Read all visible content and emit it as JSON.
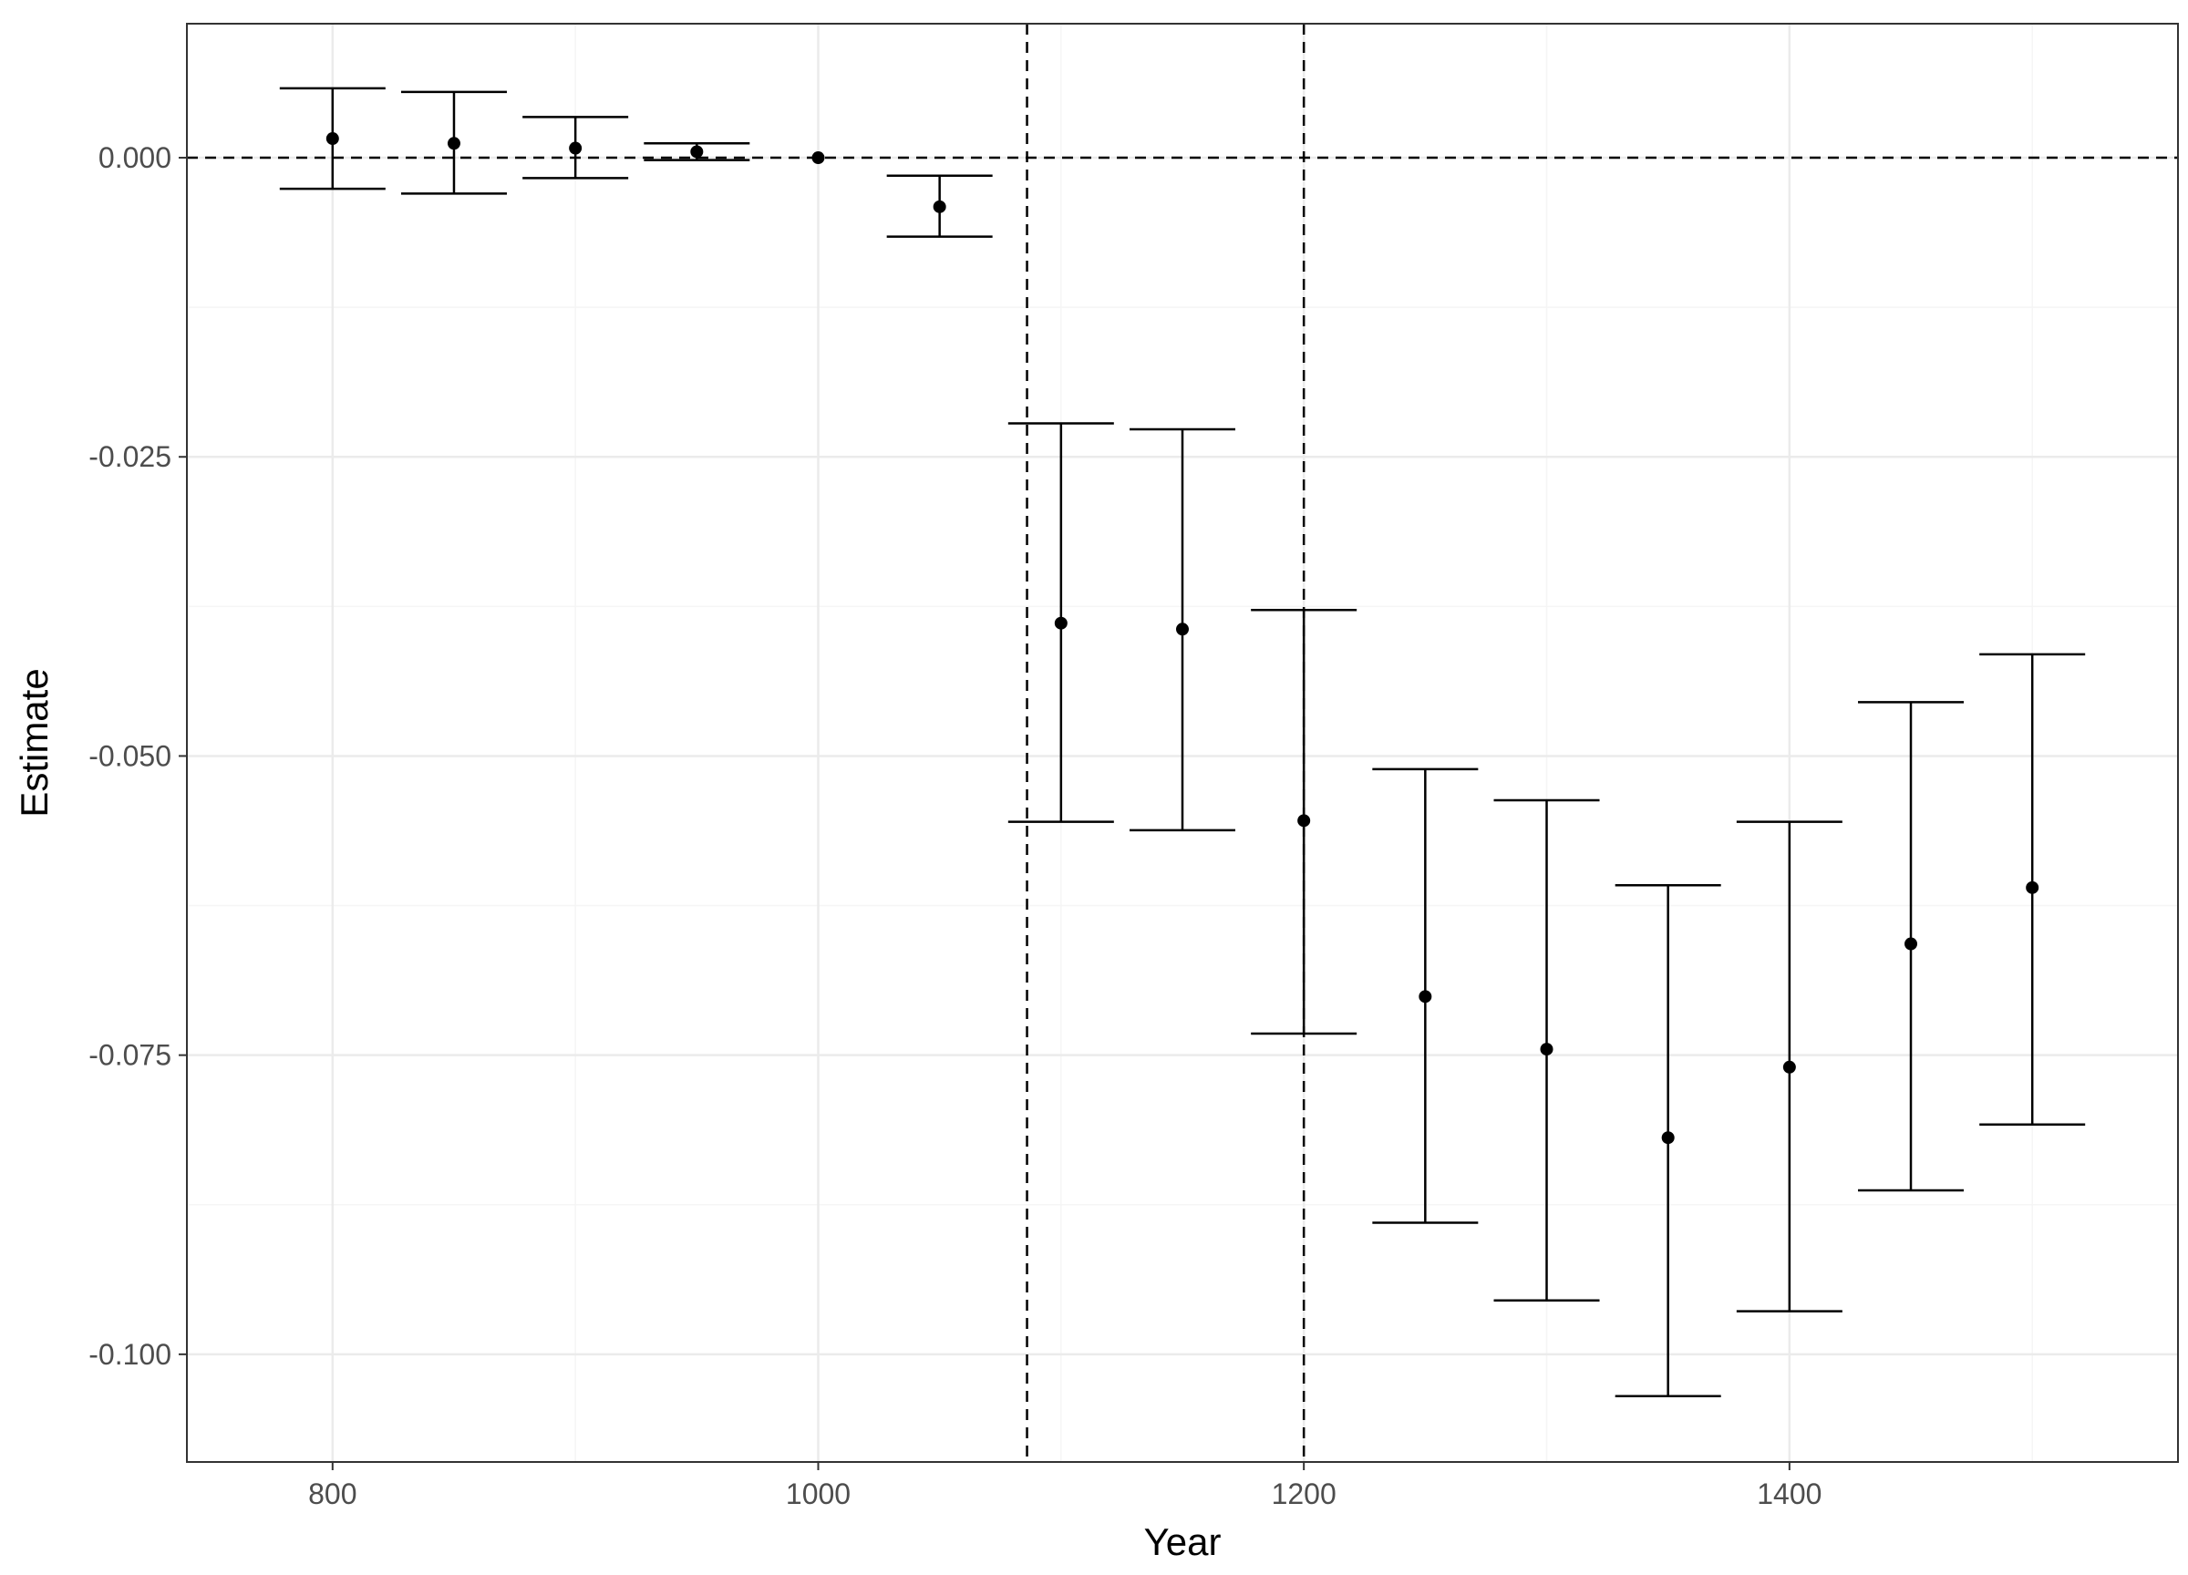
{
  "chart_data": {
    "type": "scatter",
    "title": "",
    "xlabel": "Year",
    "ylabel": "Estimate",
    "xlim": [
      740,
      1560
    ],
    "ylim": [
      -0.109,
      0.0112
    ],
    "x_ticks": [
      800,
      1000,
      1200,
      1400
    ],
    "x_tick_labels": [
      "800",
      "1000",
      "1200",
      "1400"
    ],
    "y_ticks": [
      0.0,
      -0.025,
      -0.05,
      -0.075,
      -0.1
    ],
    "y_tick_labels": [
      "0.000",
      "-0.025",
      "-0.050",
      "-0.075",
      "-0.100"
    ],
    "grid": true,
    "legend": "none",
    "series": [
      {
        "x": [
          800,
          850,
          900,
          950,
          1000,
          1050,
          1100,
          1150,
          1200,
          1250,
          1300,
          1350,
          1400,
          1450,
          1500
        ],
        "estimate": [
          0.0016,
          0.0012,
          0.0008,
          0.0005,
          0.0,
          -0.0041,
          -0.0389,
          -0.0394,
          -0.0554,
          -0.0701,
          -0.0745,
          -0.0819,
          -0.076,
          -0.0657,
          -0.061
        ],
        "lower": [
          -0.0026,
          -0.003,
          -0.0017,
          -0.0002,
          0.0,
          -0.0066,
          -0.0555,
          -0.0562,
          -0.0732,
          -0.089,
          -0.0955,
          -0.1035,
          -0.0964,
          -0.0863,
          -0.0808
        ],
        "upper": [
          0.0058,
          0.0055,
          0.0034,
          0.0012,
          0.0,
          -0.0015,
          -0.0222,
          -0.0227,
          -0.0378,
          -0.0511,
          -0.0537,
          -0.0608,
          -0.0555,
          -0.0455,
          -0.0415
        ]
      }
    ],
    "reference_lines": {
      "horizontal": [
        0.0
      ],
      "vertical": [
        1086,
        1200
      ]
    },
    "colors": {
      "points": "#000000",
      "grid_major": "#ebebeb",
      "grid_minor": "#f5f5f5",
      "panel_border": "#333333"
    }
  }
}
